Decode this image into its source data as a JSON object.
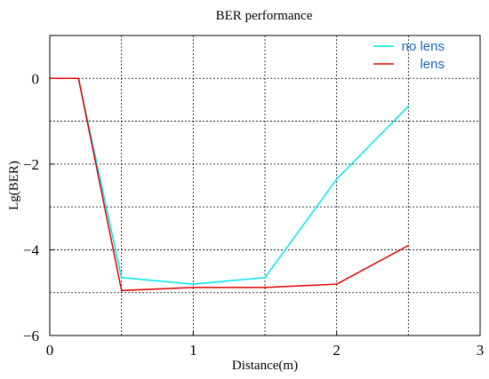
{
  "chart_data": {
    "type": "line",
    "title": "BER performance",
    "xlabel": "Distance(m)",
    "ylabel": "Lg(BER)",
    "xlim": [
      0,
      3
    ],
    "ylim": [
      -6,
      1
    ],
    "xticks": [
      0,
      1,
      2,
      3
    ],
    "yticks": [
      0,
      -2,
      -4,
      -6
    ],
    "xtick_labels": [
      "0",
      "1",
      "2",
      "3"
    ],
    "ytick_labels": [
      "0",
      "−2",
      "−4",
      "−6"
    ],
    "grid": true,
    "legend_position": "top-right",
    "series": [
      {
        "name": "no lens",
        "color": "#00e5ee",
        "x": [
          0,
          0.2,
          0.5,
          1.0,
          1.5,
          2.0,
          2.5
        ],
        "y": [
          0,
          0,
          -4.65,
          -4.8,
          -4.65,
          -2.35,
          -0.65
        ]
      },
      {
        "name": "lens",
        "color": "#e00000",
        "x": [
          0,
          0.2,
          0.5,
          1.0,
          1.5,
          2.0,
          2.5
        ],
        "y": [
          0,
          0,
          -4.95,
          -4.88,
          -4.88,
          -4.8,
          -3.9
        ]
      }
    ]
  }
}
